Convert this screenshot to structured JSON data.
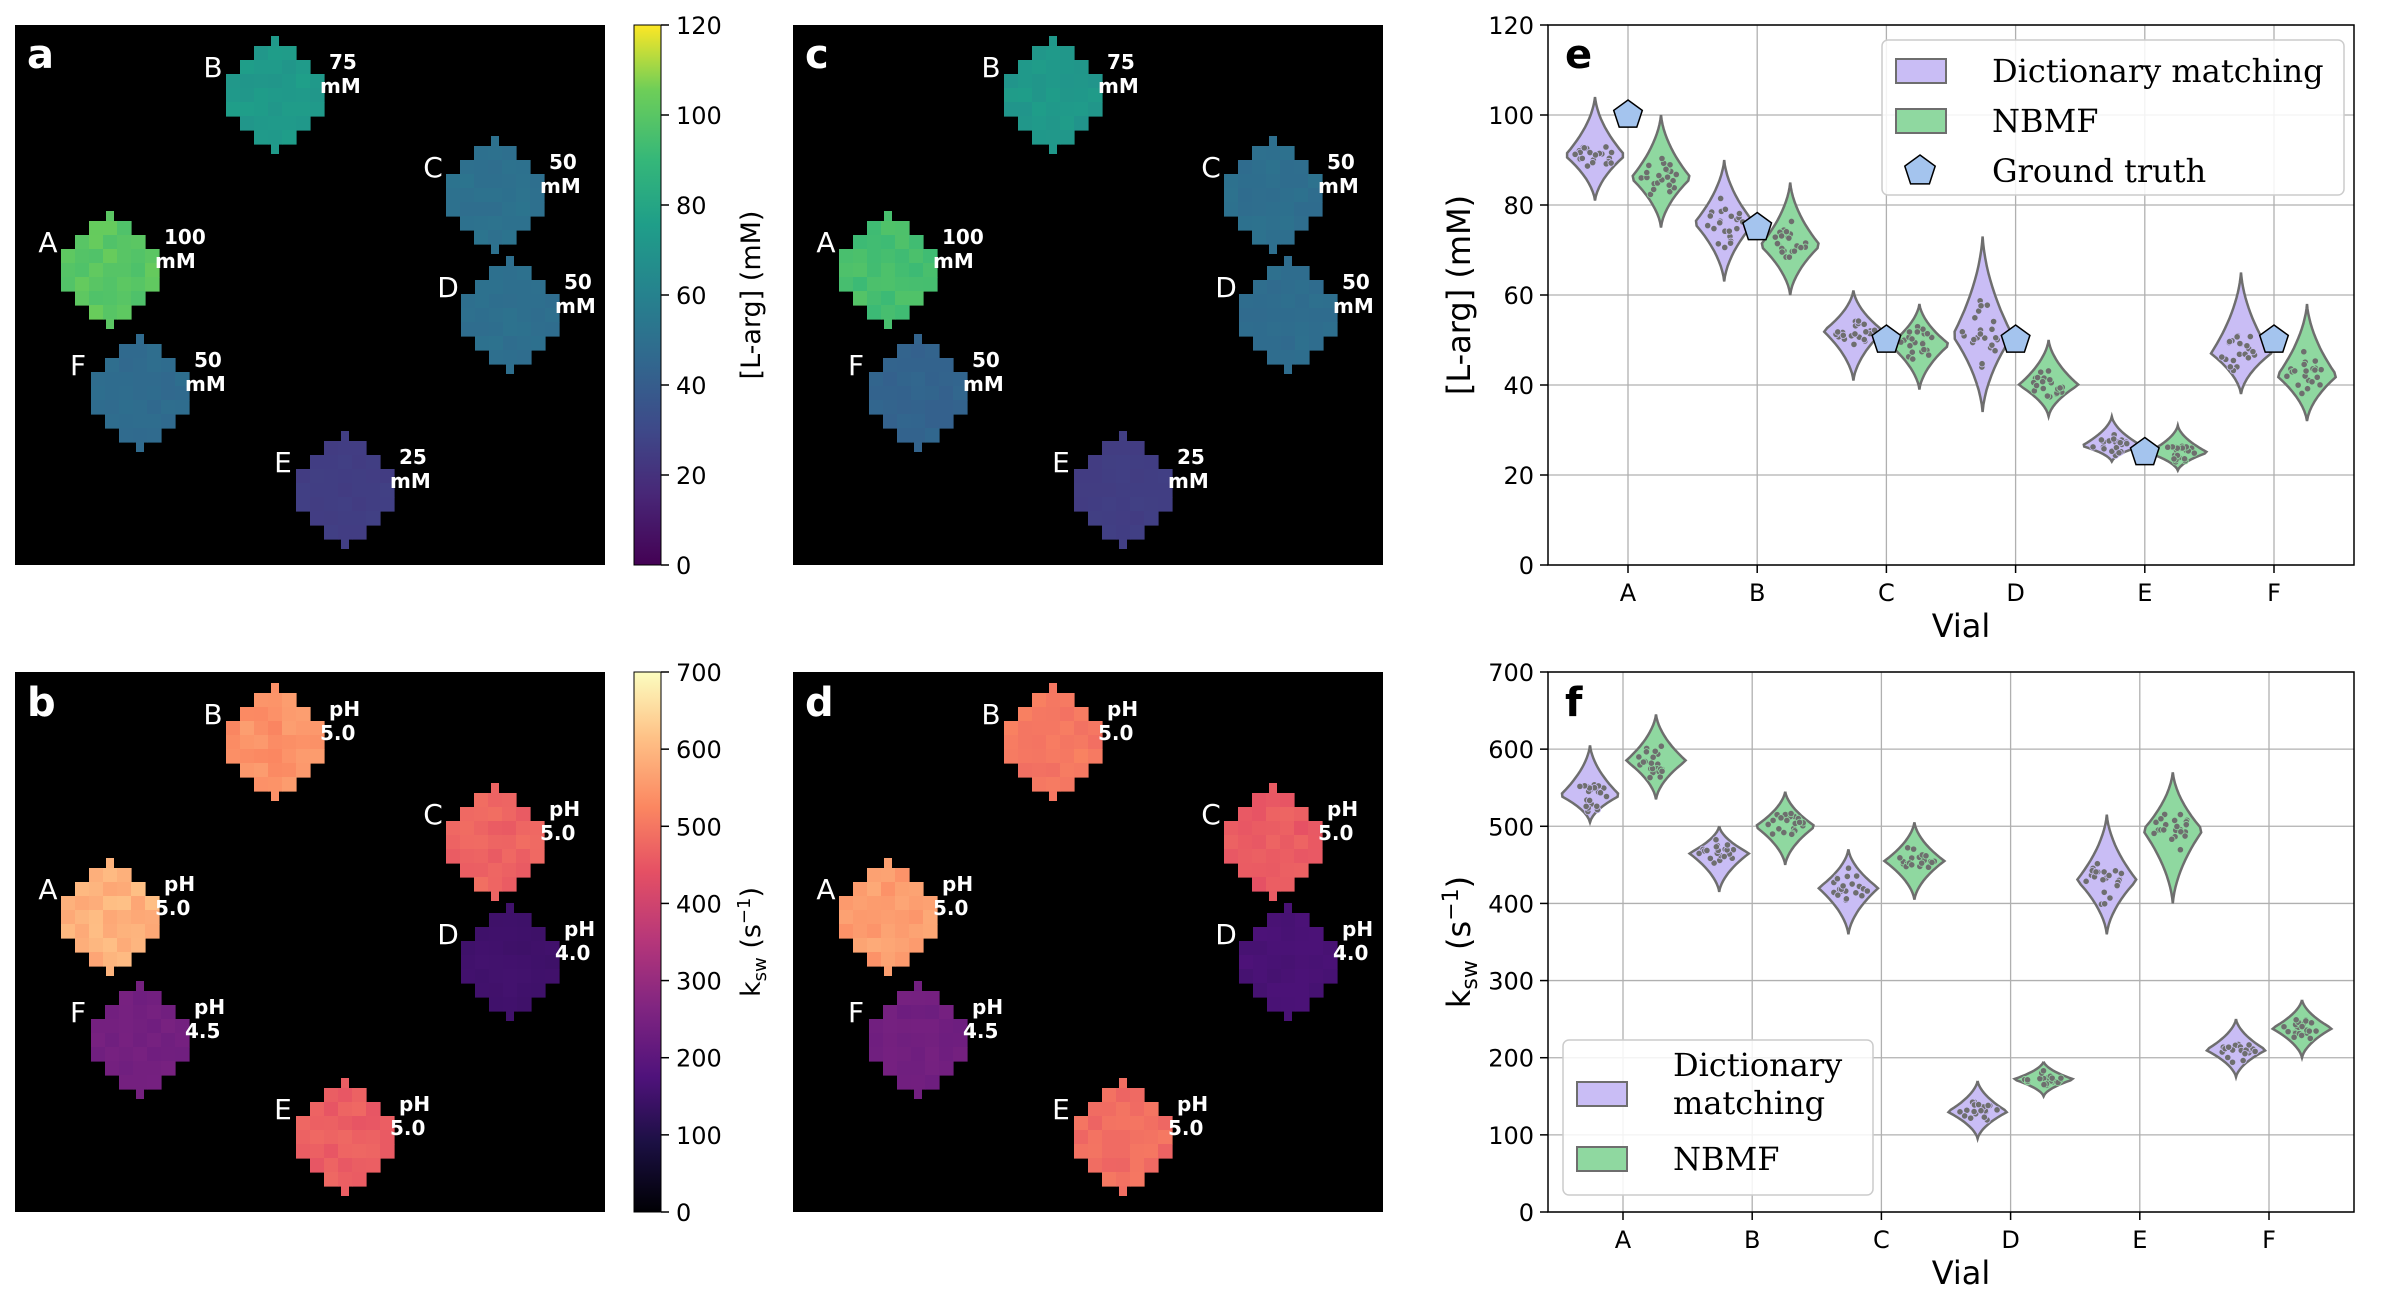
{
  "figure": {
    "panels": {
      "a": {
        "letter": "a",
        "conc_unit": "mM"
      },
      "b": {
        "letter": "b",
        "ph_prefix": "pH"
      },
      "c": {
        "letter": "c"
      },
      "d": {
        "letter": "d"
      }
    },
    "colorbar_top": {
      "label": "[L-arg] (mM)",
      "ticks": [
        "0",
        "20",
        "40",
        "60",
        "80",
        "100",
        "120"
      ],
      "range": [
        0,
        120
      ],
      "colormap": "viridis"
    },
    "colorbar_bottom": {
      "label_main": "k",
      "label_sub": "sw",
      "label_rest": " (s",
      "label_sup": "−1",
      "label_end": ")",
      "ticks": [
        "0",
        "100",
        "200",
        "300",
        "400",
        "500",
        "600",
        "700"
      ],
      "range": [
        0,
        700
      ],
      "colormap": "magma"
    },
    "vials": [
      {
        "id": "A",
        "conc_label": "100",
        "ph_label": "5.0",
        "conc_ab": 100,
        "conc_cd": 95,
        "ksw_ab": 590,
        "ksw_cd": 560
      },
      {
        "id": "B",
        "conc_label": "75",
        "ph_label": "5.0",
        "conc_ab": 73,
        "conc_cd": 72,
        "ksw_ab": 540,
        "ksw_cd": 500
      },
      {
        "id": "C",
        "conc_label": "50",
        "ph_label": "5.0",
        "conc_ab": 50,
        "conc_cd": 49,
        "ksw_ab": 470,
        "ksw_cd": 455
      },
      {
        "id": "D",
        "conc_label": "50",
        "ph_label": "4.0",
        "conc_ab": 49,
        "conc_cd": 48,
        "ksw_ab": 150,
        "ksw_cd": 165
      },
      {
        "id": "E",
        "conc_label": "25",
        "ph_label": "5.0",
        "conc_ab": 25,
        "conc_cd": 25,
        "ksw_ab": 460,
        "ksw_cd": 485
      },
      {
        "id": "F",
        "conc_label": "50",
        "ph_label": "4.5",
        "conc_ab": 47,
        "conc_cd": 43,
        "ksw_ab": 240,
        "ksw_cd": 235
      }
    ]
  },
  "chart_data": [
    {
      "type": "violin",
      "panel": "e",
      "title": "",
      "xlabel": "Vial",
      "ylabel": "[L-arg] (mM)",
      "categories": [
        "A",
        "B",
        "C",
        "D",
        "E",
        "F"
      ],
      "ylim": [
        0,
        120
      ],
      "yticks": [
        "0",
        "20",
        "40",
        "60",
        "80",
        "100",
        "120"
      ],
      "grid": true,
      "legend_position": "top-right",
      "series": [
        {
          "name": "Dictionary matching",
          "color": "#c9bdf5",
          "medians": [
            91,
            76,
            52,
            51,
            26.5,
            47
          ],
          "spreads": [
            [
              81,
              104
            ],
            [
              63,
              90
            ],
            [
              41,
              61
            ],
            [
              34,
              73
            ],
            [
              23,
              33
            ],
            [
              38,
              65
            ]
          ]
        },
        {
          "name": "NBMF",
          "color": "#8fd8a0",
          "medians": [
            86,
            71,
            49,
            40,
            25,
            42
          ],
          "spreads": [
            [
              75,
              100
            ],
            [
              60,
              85
            ],
            [
              39,
              58
            ],
            [
              33,
              50
            ],
            [
              21,
              31
            ],
            [
              32,
              58
            ]
          ]
        },
        {
          "name": "Ground truth",
          "marker": "pentagon",
          "color": "#a4c4ee",
          "values": [
            100,
            75,
            50,
            50,
            25,
            50
          ]
        }
      ]
    },
    {
      "type": "violin",
      "panel": "f",
      "title": "",
      "xlabel": "Vial",
      "ylabel_main": "k",
      "ylabel_sub": "sw",
      "ylabel_rest": " (s",
      "ylabel_sup": "−1",
      "ylabel_end": ")",
      "categories": [
        "A",
        "B",
        "C",
        "D",
        "E",
        "F"
      ],
      "ylim": [
        0,
        700
      ],
      "yticks": [
        "0",
        "100",
        "200",
        "300",
        "400",
        "500",
        "600",
        "700"
      ],
      "grid": true,
      "legend_position": "bottom-left",
      "series": [
        {
          "name": "Dictionary matching",
          "color": "#c9bdf5",
          "legend_lines": [
            "Dictionary",
            "matching"
          ],
          "medians": [
            540,
            465,
            420,
            130,
            430,
            210
          ],
          "spreads": [
            [
              505,
              605
            ],
            [
              415,
              500
            ],
            [
              360,
              470
            ],
            [
              95,
              170
            ],
            [
              360,
              515
            ],
            [
              175,
              250
            ]
          ]
        },
        {
          "name": "NBMF",
          "color": "#8fd8a0",
          "medians": [
            585,
            500,
            455,
            172,
            495,
            238
          ],
          "spreads": [
            [
              535,
              645
            ],
            [
              450,
              545
            ],
            [
              405,
              505
            ],
            [
              150,
              195
            ],
            [
              400,
              570
            ],
            [
              200,
              275
            ]
          ]
        }
      ]
    }
  ]
}
